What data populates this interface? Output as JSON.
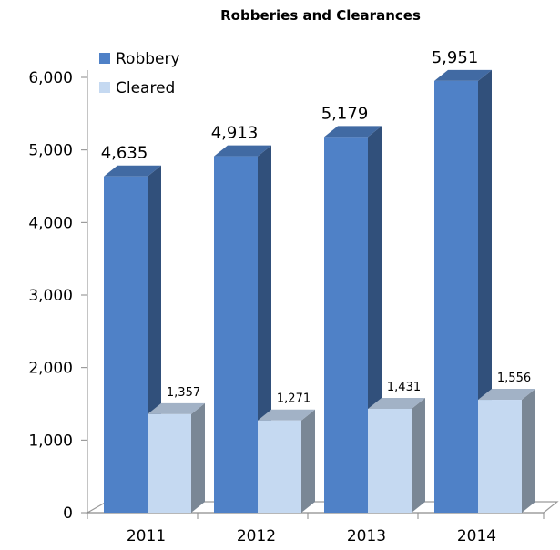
{
  "chart_data": {
    "type": "bar",
    "title": "Robberies and Clearances",
    "categories": [
      "2011",
      "2012",
      "2013",
      "2014"
    ],
    "series": [
      {
        "name": "Robbery",
        "values": [
          4635,
          4913,
          5179,
          5951
        ],
        "labels": [
          "4,635",
          "4,913",
          "5,179",
          "5,951"
        ],
        "color": "#4f81c7"
      },
      {
        "name": "Cleared",
        "values": [
          1357,
          1271,
          1431,
          1556
        ],
        "labels": [
          "1,357",
          "1,271",
          "1,431",
          "1,556"
        ],
        "color": "#c5d9f1"
      }
    ],
    "yticks": [
      "0",
      "1,000",
      "2,000",
      "3,000",
      "4,000",
      "5,000",
      "6,000"
    ],
    "ylim": [
      0,
      6000
    ],
    "legend_position": "top-left",
    "three_d": true
  }
}
